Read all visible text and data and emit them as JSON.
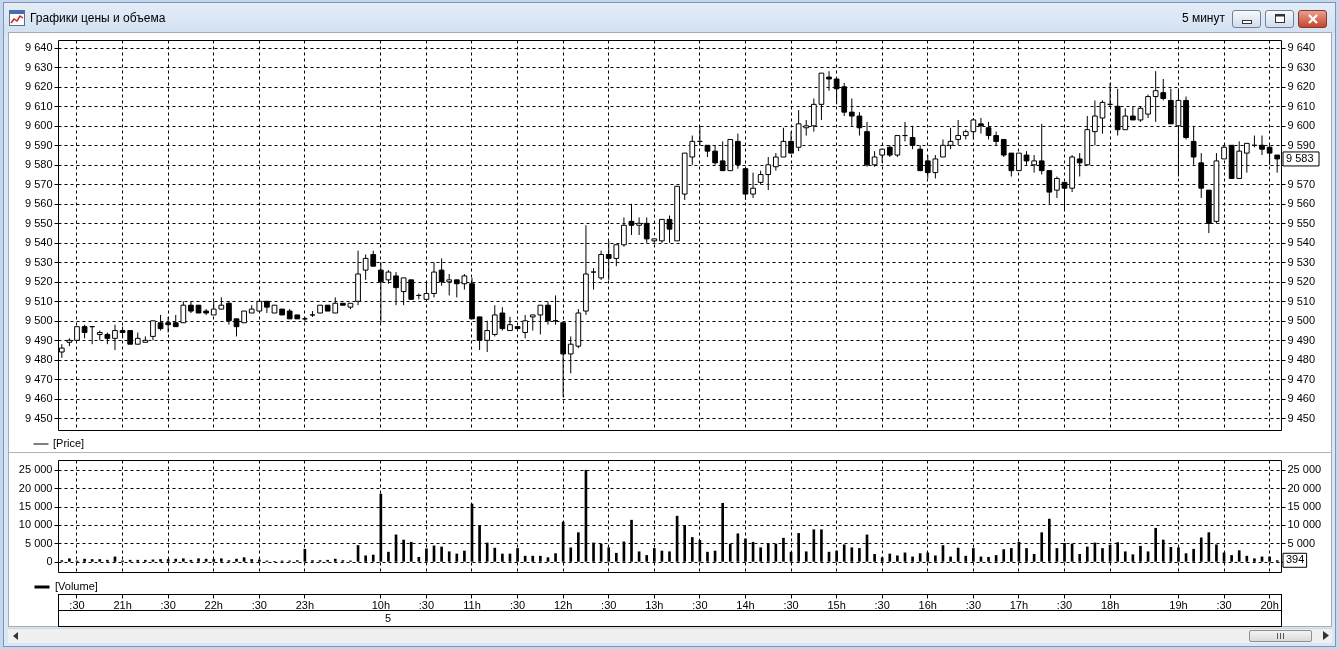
{
  "chart_data": [
    {
      "type": "candlestick",
      "title": "Графики цены и объема",
      "subtitle": "5 минут",
      "categories": [
        null,
        null,
        null,
        null,
        null,
        null,
        null,
        null,
        null,
        null,
        null,
        null,
        null,
        null,
        null,
        null,
        null,
        null,
        null,
        null,
        null,
        null,
        null,
        null,
        null,
        null,
        null,
        null,
        null,
        null,
        null,
        null,
        null,
        null,
        null,
        null,
        null,
        null,
        null,
        null,
        null,
        null,
        null,
        null,
        null,
        null,
        null,
        null,
        null,
        null,
        null,
        null,
        null,
        null,
        null,
        null,
        null,
        null,
        null,
        null,
        null,
        null,
        null,
        null,
        null,
        null,
        null,
        null,
        null,
        null,
        null,
        null,
        null,
        null,
        null,
        null,
        null,
        null,
        null,
        null,
        null,
        null,
        null,
        null,
        null,
        null,
        null,
        null,
        null,
        null,
        null,
        null,
        null,
        null,
        null,
        null,
        null,
        null,
        null,
        null,
        null,
        null,
        null,
        null,
        null,
        null,
        null,
        null,
        null,
        null,
        null,
        null,
        null,
        null,
        null,
        null,
        null,
        null,
        null,
        null,
        null,
        null,
        null,
        null,
        null,
        null,
        null,
        null,
        null,
        null,
        null,
        null,
        null,
        null,
        null,
        null,
        null,
        null,
        null,
        null,
        null,
        null,
        null,
        null,
        null,
        null,
        null,
        null,
        null,
        null,
        null,
        null,
        null,
        null,
        null,
        null,
        null,
        null,
        null,
        null,
        null
      ],
      "series": [
        {
          "name": "[Price]",
          "color": "#000000",
          "ohlc": [
            [
              9484,
              9488,
              9481,
              9486
            ],
            [
              9489,
              9491,
              9487,
              9490
            ],
            [
              9490,
              9497,
              9490,
              9497
            ],
            [
              9497,
              9498,
              9491,
              9494
            ],
            [
              9497,
              9497,
              9488,
              9497
            ],
            [
              9493,
              9495,
              9490,
              9494
            ],
            [
              9493,
              9494,
              9488,
              9491
            ],
            [
              9491,
              9498,
              9485,
              9495
            ],
            [
              9495,
              9497,
              9491,
              9494
            ],
            [
              9495,
              9495,
              9488,
              9488
            ],
            [
              9488,
              9494,
              9488,
              9491
            ],
            [
              9489,
              9492,
              9489,
              9490
            ],
            [
              9492,
              9500,
              9490,
              9500
            ],
            [
              9499,
              9503,
              9495,
              9496
            ],
            [
              9499,
              9502,
              9494,
              9498
            ],
            [
              9499,
              9503,
              9497,
              9497
            ],
            [
              9499,
              9510,
              9499,
              9508
            ],
            [
              9508,
              9510,
              9504,
              9505
            ],
            [
              9508,
              9508,
              9504,
              9504
            ],
            [
              9505,
              9506,
              9503,
              9504
            ],
            [
              9503,
              9510,
              9503,
              9506
            ],
            [
              9506,
              9512,
              9506,
              9508
            ],
            [
              9509,
              9510,
              9498,
              9500
            ],
            [
              9501,
              9501,
              9492,
              9497
            ],
            [
              9499,
              9505,
              9499,
              9505
            ],
            [
              9504,
              9508,
              9504,
              9506
            ],
            [
              9505,
              9510,
              9505,
              9510
            ],
            [
              9510,
              9510,
              9504,
              9507
            ],
            [
              9504,
              9508,
              9504,
              9508
            ],
            [
              9506,
              9506,
              9503,
              9503
            ],
            [
              9505,
              9506,
              9501,
              9501
            ],
            [
              9503,
              9503,
              9501,
              9501
            ],
            [
              9501,
              9502,
              9500,
              9501
            ],
            [
              9503,
              9505,
              9502,
              9503
            ],
            [
              9504,
              9508,
              9504,
              9508
            ],
            [
              9508,
              9508,
              9505,
              9505
            ],
            [
              9504,
              9512,
              9504,
              9509
            ],
            [
              9509,
              9509,
              9508,
              9508
            ],
            [
              9507,
              9509,
              9506,
              9509
            ],
            [
              9510,
              9536,
              9508,
              9524
            ],
            [
              9526,
              9534,
              9521,
              9532
            ],
            [
              9534,
              9536,
              9528,
              9528
            ],
            [
              9526,
              9530,
              9499,
              9520
            ],
            [
              9521,
              9526,
              9519,
              9525
            ],
            [
              9523,
              9525,
              9508,
              9517
            ],
            [
              9515,
              9522,
              9508,
              9522
            ],
            [
              9521,
              9521,
              9511,
              9511
            ],
            [
              9513,
              9514,
              9511,
              9513
            ],
            [
              9511,
              9520,
              9511,
              9514
            ],
            [
              9514,
              9530,
              9512,
              9525
            ],
            [
              9526,
              9532,
              9518,
              9520
            ],
            [
              9520,
              9524,
              9513,
              9521
            ],
            [
              9521,
              9521,
              9512,
              9519
            ],
            [
              9519,
              9524,
              9516,
              9523
            ],
            [
              9519,
              9522,
              9501,
              9501
            ],
            [
              9502,
              9502,
              9485,
              9490
            ],
            [
              9490,
              9500,
              9484,
              9495
            ],
            [
              9493,
              9508,
              9492,
              9503
            ],
            [
              9504,
              9507,
              9495,
              9496
            ],
            [
              9495,
              9502,
              9495,
              9498
            ],
            [
              9497,
              9497,
              9496,
              9496
            ],
            [
              9494,
              9503,
              9491,
              9500
            ],
            [
              9502,
              9503,
              9495,
              9503
            ],
            [
              9503,
              9508,
              9493,
              9508
            ],
            [
              9508,
              9510,
              9498,
              9500
            ],
            [
              9500,
              9513,
              9498,
              9500
            ],
            [
              9499,
              9499,
              9461,
              9483
            ],
            [
              9483,
              9492,
              9473,
              9488
            ],
            [
              9487,
              9506,
              9486,
              9504
            ],
            [
              9505,
              9549,
              9503,
              9524
            ],
            [
              9525,
              9527,
              9516,
              9525
            ],
            [
              9522,
              9536,
              9521,
              9534
            ],
            [
              9534,
              9541,
              9521,
              9532
            ],
            [
              9532,
              9539,
              9528,
              9539
            ],
            [
              9539,
              9553,
              9538,
              9549
            ],
            [
              9551,
              9560,
              9544,
              9549
            ],
            [
              9549,
              9553,
              9544,
              9550
            ],
            [
              9550,
              9553,
              9540,
              9542
            ],
            [
              9541,
              9542,
              9540,
              9542
            ],
            [
              9541,
              9552,
              9540,
              9552
            ],
            [
              9552,
              9554,
              9540,
              9547
            ],
            [
              9541,
              9569,
              9541,
              9569
            ],
            [
              9565,
              9586,
              9562,
              9586
            ],
            [
              9584,
              9595,
              9580,
              9592
            ],
            [
              9592,
              9600,
              9590,
              9592
            ],
            [
              9590,
              9590,
              9584,
              9587
            ],
            [
              9587,
              9590,
              9580,
              9581
            ],
            [
              9582,
              9592,
              9577,
              9577
            ],
            [
              9577,
              9593,
              9577,
              9593
            ],
            [
              9592,
              9596,
              9578,
              9580
            ],
            [
              9578,
              9578,
              9562,
              9565
            ],
            [
              9565,
              9576,
              9563,
              9568
            ],
            [
              9571,
              9577,
              9570,
              9575
            ],
            [
              9575,
              9584,
              9567,
              9580
            ],
            [
              9579,
              9586,
              9577,
              9584
            ],
            [
              9584,
              9599,
              9584,
              9592
            ],
            [
              9592,
              9597,
              9586,
              9586
            ],
            [
              9589,
              9608,
              9587,
              9601
            ],
            [
              9599,
              9603,
              9595,
              9600
            ],
            [
              9600,
              9614,
              9597,
              9611
            ],
            [
              9611,
              9627,
              9603,
              9627
            ],
            [
              9625,
              9628,
              9618,
              9624
            ],
            [
              9624,
              9624,
              9611,
              9619
            ],
            [
              9620,
              9622,
              9605,
              9607
            ],
            [
              9607,
              9614,
              9600,
              9605
            ],
            [
              9605,
              9607,
              9595,
              9599
            ],
            [
              9597,
              9602,
              9579,
              9580
            ],
            [
              9580,
              9587,
              9579,
              9584
            ],
            [
              9585,
              9588,
              9581,
              9588
            ],
            [
              9589,
              9590,
              9584,
              9585
            ],
            [
              9585,
              9595,
              9584,
              9595
            ],
            [
              9595,
              9602,
              9592,
              9595
            ],
            [
              9594,
              9600,
              9588,
              9590
            ],
            [
              9588,
              9590,
              9577,
              9577
            ],
            [
              9582,
              9585,
              9573,
              9576
            ],
            [
              9576,
              9585,
              9573,
              9583
            ],
            [
              9584,
              9593,
              9584,
              9590
            ],
            [
              9590,
              9599,
              9588,
              9592
            ],
            [
              9593,
              9603,
              9590,
              9595
            ],
            [
              9595,
              9598,
              9593,
              9597
            ],
            [
              9597,
              9604,
              9593,
              9603
            ],
            [
              9601,
              9604,
              9596,
              9600
            ],
            [
              9599,
              9602,
              9593,
              9595
            ],
            [
              9595,
              9597,
              9590,
              9592
            ],
            [
              9593,
              9593,
              9584,
              9585
            ],
            [
              9586,
              9586,
              9574,
              9577
            ],
            [
              9577,
              9586,
              9577,
              9586
            ],
            [
              9585,
              9587,
              9580,
              9582
            ],
            [
              9580,
              9585,
              9576,
              9582
            ],
            [
              9582,
              9601,
              9575,
              9577
            ],
            [
              9577,
              9577,
              9560,
              9566
            ],
            [
              9567,
              9574,
              9563,
              9573
            ],
            [
              9571,
              9571,
              9557,
              9568
            ],
            [
              9568,
              9585,
              9566,
              9584
            ],
            [
              9583,
              9586,
              9574,
              9581
            ],
            [
              9580,
              9605,
              9580,
              9598
            ],
            [
              9597,
              9613,
              9590,
              9605
            ],
            [
              9604,
              9613,
              9596,
              9612
            ],
            [
              9611,
              9622,
              9610,
              9611
            ],
            [
              9610,
              9619,
              9595,
              9598
            ],
            [
              9598,
              9609,
              9598,
              9605
            ],
            [
              9605,
              9610,
              9603,
              9603
            ],
            [
              9603,
              9610,
              9602,
              9609
            ],
            [
              9606,
              9616,
              9604,
              9615
            ],
            [
              9615,
              9628,
              9602,
              9618
            ],
            [
              9617,
              9624,
              9613,
              9614
            ],
            [
              9613,
              9619,
              9601,
              9601
            ],
            [
              9600,
              9619,
              9574,
              9613
            ],
            [
              9613,
              9615,
              9593,
              9594
            ],
            [
              9592,
              9600,
              9580,
              9584
            ],
            [
              9581,
              9586,
              9563,
              9568
            ],
            [
              9567,
              9567,
              9545,
              9550
            ],
            [
              9551,
              9586,
              9550,
              9582
            ],
            [
              9583,
              9590,
              9583,
              9589
            ],
            [
              9590,
              9590,
              9573,
              9573
            ],
            [
              9573,
              9592,
              9573,
              9587
            ],
            [
              9586,
              9591,
              9576,
              9591
            ],
            [
              9590,
              9595,
              9589,
              9590
            ],
            [
              9590,
              9595,
              9585,
              9588
            ],
            [
              9589,
              9590,
              9580,
              9586
            ],
            [
              9585,
              9585,
              9576,
              9583
            ]
          ]
        }
      ],
      "ylim": [
        9444,
        9644
      ],
      "yticks": [
        {
          "value": 9450,
          "label": "9 450"
        },
        {
          "value": 9460,
          "label": "9 460"
        },
        {
          "value": 9470,
          "label": "9 470"
        },
        {
          "value": 9480,
          "label": "9 480"
        },
        {
          "value": 9490,
          "label": "9 490"
        },
        {
          "value": 9500,
          "label": "9 500"
        },
        {
          "value": 9510,
          "label": "9 510"
        },
        {
          "value": 9520,
          "label": "9 520"
        },
        {
          "value": 9530,
          "label": "9 530"
        },
        {
          "value": 9540,
          "label": "9 540"
        },
        {
          "value": 9550,
          "label": "9 550"
        },
        {
          "value": 9560,
          "label": "9 560"
        },
        {
          "value": 9570,
          "label": "9 570"
        },
        {
          "value": 9580,
          "label": "9 580"
        },
        {
          "value": 9590,
          "label": "9 590"
        },
        {
          "value": 9600,
          "label": "9 600"
        },
        {
          "value": 9610,
          "label": "9 610"
        },
        {
          "value": 9620,
          "label": "9 620"
        },
        {
          "value": 9630,
          "label": "9 630"
        },
        {
          "value": 9640,
          "label": "9 640"
        }
      ],
      "y2lim": [
        9444,
        9644
      ],
      "y2ticks": [
        {
          "value": 9450,
          "label": "9 450"
        },
        {
          "value": 9460,
          "label": "9 460"
        },
        {
          "value": 9470,
          "label": "9 470"
        },
        {
          "value": 9480,
          "label": "9 480"
        },
        {
          "value": 9490,
          "label": "9 490"
        },
        {
          "value": 9500,
          "label": "9 500"
        },
        {
          "value": 9510,
          "label": "9 510"
        },
        {
          "value": 9520,
          "label": "9 520"
        },
        {
          "value": 9530,
          "label": "9 530"
        },
        {
          "value": 9540,
          "label": "9 540"
        },
        {
          "value": 9550,
          "label": "9 550"
        },
        {
          "value": 9560,
          "label": "9 560"
        },
        {
          "value": 9570,
          "label": "9 570"
        },
        {
          "value": 9580,
          "label": null
        },
        {
          "value": 9590,
          "label": "9 590"
        },
        {
          "value": 9600,
          "label": "9 600"
        },
        {
          "value": 9610,
          "label": "9 610"
        },
        {
          "value": 9620,
          "label": "9 620"
        },
        {
          "value": 9630,
          "label": "9 630"
        },
        {
          "value": 9640,
          "label": "9 640"
        }
      ],
      "annotations": [
        {
          "text": "9 583",
          "y": 9583
        }
      ],
      "grid": true,
      "legend": "bottom left",
      "tick_labels": "y"
    },
    {
      "type": "bar",
      "categories": [
        null,
        null,
        ":30",
        null,
        null,
        null,
        null,
        null,
        "21h",
        null,
        null,
        null,
        null,
        null,
        ":30",
        null,
        null,
        null,
        null,
        null,
        "22h",
        null,
        null,
        null,
        null,
        null,
        ":30",
        null,
        null,
        null,
        null,
        null,
        "23h",
        null,
        null,
        null,
        null,
        null,
        null,
        null,
        null,
        null,
        "10h",
        null,
        null,
        null,
        null,
        null,
        ":30",
        null,
        null,
        null,
        null,
        null,
        "11h",
        null,
        null,
        null,
        null,
        null,
        ":30",
        null,
        null,
        null,
        null,
        null,
        "12h",
        null,
        null,
        null,
        null,
        null,
        ":30",
        null,
        null,
        null,
        null,
        null,
        "13h",
        null,
        null,
        null,
        null,
        null,
        ":30",
        null,
        null,
        null,
        null,
        null,
        "14h",
        null,
        null,
        null,
        null,
        null,
        ":30",
        null,
        null,
        null,
        null,
        null,
        "15h",
        null,
        null,
        null,
        null,
        null,
        ":30",
        null,
        null,
        null,
        null,
        null,
        "16h",
        null,
        null,
        null,
        null,
        null,
        ":30",
        null,
        null,
        null,
        null,
        null,
        "17h",
        null,
        null,
        null,
        null,
        null,
        ":30",
        null,
        null,
        null,
        null,
        null,
        "18h",
        null,
        null,
        null,
        null,
        null,
        null,
        null,
        null,
        "19h",
        null,
        null,
        null,
        null,
        null,
        ":30",
        null,
        null,
        null,
        null,
        null,
        "20h",
        null
      ],
      "series": [
        {
          "name": "[Volume]",
          "color": "#000000",
          "values": [
            400,
            900,
            300,
            800,
            700,
            700,
            500,
            1400,
            300,
            500,
            500,
            500,
            600,
            700,
            700,
            800,
            900,
            500,
            900,
            800,
            700,
            900,
            400,
            800,
            1200,
            700,
            600,
            300,
            200,
            300,
            300,
            400,
            3500,
            400,
            400,
            500,
            800,
            400,
            300,
            4500,
            1700,
            1900,
            18500,
            2700,
            7400,
            6000,
            5400,
            1300,
            3600,
            4400,
            4100,
            2800,
            2200,
            3000,
            15800,
            10000,
            5200,
            3800,
            2200,
            2200,
            3700,
            1600,
            1600,
            1600,
            1200,
            2300,
            10900,
            3900,
            8000,
            25000,
            5200,
            4900,
            3900,
            2400,
            5500,
            11400,
            2800,
            1800,
            3700,
            3000,
            2800,
            12500,
            10000,
            6700,
            5900,
            2700,
            3000,
            16000,
            4900,
            7700,
            6300,
            5400,
            3900,
            5000,
            4900,
            6500,
            2700,
            7800,
            2800,
            8800,
            8800,
            2700,
            3000,
            4700,
            3900,
            3700,
            7400,
            2100,
            1200,
            2200,
            1700,
            2500,
            1400,
            2300,
            2500,
            1700,
            4500,
            1400,
            3800,
            1600,
            3700,
            1400,
            1300,
            1800,
            3400,
            3700,
            5400,
            3700,
            2100,
            8000,
            11700,
            3700,
            5100,
            4900,
            2100,
            4100,
            5200,
            3700,
            4600,
            5300,
            2800,
            2000,
            4300,
            2800,
            9200,
            6000,
            4000,
            3900,
            2300,
            3500,
            6600,
            8000,
            4700,
            2500,
            1800,
            3100,
            1600,
            900,
            1400,
            1400,
            394
          ]
        }
      ],
      "ylim": [
        -2800,
        27700
      ],
      "yticks": [
        0,
        {
          "value": 5000,
          "label": "5 000"
        },
        {
          "value": 10000,
          "label": "10 000"
        },
        {
          "value": 15000,
          "label": "15 000"
        },
        {
          "value": 20000,
          "label": "20 000"
        },
        {
          "value": 25000,
          "label": "25 000"
        }
      ],
      "y2lim": [
        -2800,
        27700
      ],
      "y2ticks": [
        {
          "value": 0,
          "label": null
        },
        {
          "value": 5000,
          "label": "5 000"
        },
        {
          "value": 10000,
          "label": "10 000"
        },
        {
          "value": 15000,
          "label": "15 000"
        },
        {
          "value": 20000,
          "label": "20 000"
        },
        {
          "value": 25000,
          "label": "25 000"
        }
      ],
      "annotations": [
        {
          "text": "394",
          "y": 394
        },
        "5"
      ],
      "grid": true,
      "legend": "bottom left"
    }
  ]
}
